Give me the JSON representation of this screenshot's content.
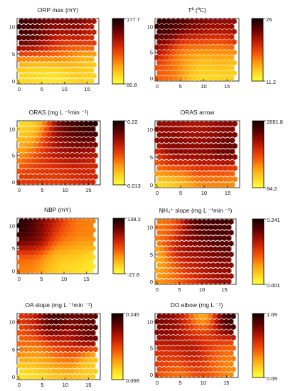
{
  "figure": {
    "colormap": [
      "#fffd3a",
      "#ffd21e",
      "#ff9c0f",
      "#f55a09",
      "#d72b05",
      "#9c0d02",
      "#560100",
      "#160000"
    ]
  },
  "chart_data": [
    {
      "type": "heatmap",
      "map": "som-hexagonal",
      "title": "ORP max (mY)",
      "x_ticks": [
        "0",
        "5",
        "10",
        "15"
      ],
      "y_ticks": [
        "10",
        "5",
        "0"
      ],
      "colorbar": {
        "max": "177.7",
        "min": "60.8"
      },
      "hotspots": [
        [
          1,
          9,
          0.92,
          3.0
        ],
        [
          4,
          10,
          0.9,
          3.2
        ],
        [
          7,
          9,
          0.7,
          2.5
        ],
        [
          13,
          11,
          0.85,
          3.0
        ],
        [
          16,
          9,
          0.55,
          2.2
        ],
        [
          9,
          6,
          0.45,
          2.5
        ],
        [
          2,
          2,
          0.12,
          3.0
        ],
        [
          8,
          1,
          0.05,
          3.0
        ],
        [
          14,
          3,
          0.2,
          3.0
        ],
        [
          16,
          1,
          0.1,
          2.0
        ]
      ]
    },
    {
      "type": "heatmap",
      "map": "som-hexagonal",
      "title": "Tª (ºC)",
      "x_ticks": [
        "0",
        "5",
        "10",
        "15"
      ],
      "y_ticks": [
        "10",
        "5",
        "0"
      ],
      "colorbar": {
        "max": "26",
        "min": "11.2"
      },
      "hotspots": [
        [
          1,
          10,
          0.95,
          3.0
        ],
        [
          4,
          11,
          0.9,
          3.0
        ],
        [
          9,
          10,
          0.8,
          3.0
        ],
        [
          15,
          10,
          0.75,
          3.0
        ],
        [
          0,
          6,
          0.7,
          2.0
        ],
        [
          10,
          2,
          0.1,
          4.0
        ],
        [
          15,
          1,
          0.15,
          3.0
        ],
        [
          3,
          2,
          0.45,
          2.5
        ],
        [
          6,
          5,
          0.3,
          2.5
        ],
        [
          13,
          5,
          0.35,
          2.5
        ]
      ]
    },
    {
      "type": "heatmap",
      "map": "som-hexagonal",
      "title": "ORAS (mg L ⁻¹min ⁻¹)",
      "x_ticks": [
        "0",
        "5",
        "10",
        "15"
      ],
      "y_ticks": [
        "10",
        "5",
        "0"
      ],
      "colorbar": {
        "max": "0.22",
        "min": "0.013"
      },
      "hotspots": [
        [
          14,
          10,
          1.0,
          3.5
        ],
        [
          11,
          8,
          0.8,
          3.0
        ],
        [
          8,
          6,
          0.65,
          3.0
        ],
        [
          15,
          4,
          0.55,
          3.0
        ],
        [
          2,
          10,
          0.1,
          3.0
        ],
        [
          0,
          6,
          0.25,
          2.5
        ],
        [
          4,
          3,
          0.5,
          3.0
        ],
        [
          2,
          0,
          0.55,
          2.5
        ],
        [
          8,
          1,
          0.5,
          2.5
        ],
        [
          16,
          1,
          0.6,
          2.5
        ]
      ]
    },
    {
      "type": "heatmap",
      "map": "som-hexagonal",
      "title": "ORAS arrow",
      "x_ticks": [
        "0",
        "5",
        "10",
        "15"
      ],
      "y_ticks": [
        "10",
        "5",
        "0"
      ],
      "colorbar": {
        "max": "2691.8",
        "min": "84.2"
      },
      "hotspots": [
        [
          3,
          10,
          0.7,
          3.0
        ],
        [
          9,
          10,
          0.65,
          3.0
        ],
        [
          15,
          10,
          0.75,
          3.0
        ],
        [
          3,
          6,
          0.85,
          3.0
        ],
        [
          10,
          5,
          0.8,
          3.0
        ],
        [
          15,
          6,
          0.9,
          2.5
        ],
        [
          1,
          0,
          0.05,
          2.0
        ],
        [
          5,
          1,
          0.15,
          2.5
        ],
        [
          11,
          1,
          0.25,
          2.5
        ],
        [
          16,
          1,
          0.3,
          2.5
        ],
        [
          0,
          4,
          0.3,
          2.0
        ]
      ]
    },
    {
      "type": "heatmap",
      "map": "som-hexagonal",
      "title": "NBP (mY)",
      "x_ticks": [
        "0",
        "5",
        "10",
        "15"
      ],
      "y_ticks": [
        "10",
        "5",
        "0"
      ],
      "colorbar": {
        "max": "138.2",
        "min": "-27.8"
      },
      "hotspots": [
        [
          1,
          10,
          1.0,
          2.8
        ],
        [
          3,
          7,
          0.85,
          2.5
        ],
        [
          6,
          10,
          0.7,
          2.5
        ],
        [
          10,
          8,
          0.45,
          2.5
        ],
        [
          15,
          9,
          0.35,
          2.5
        ],
        [
          3,
          2,
          0.35,
          3.0
        ],
        [
          9,
          1,
          0.12,
          3.0
        ],
        [
          15,
          1,
          0.05,
          3.0
        ],
        [
          12,
          5,
          0.25,
          3.0
        ]
      ]
    },
    {
      "type": "heatmap",
      "map": "som-hexagonal",
      "title": "NH₄⁺ slope (mg L ⁻¹min ⁻¹)",
      "x_ticks": [
        "0",
        "5",
        "10",
        "15"
      ],
      "y_ticks": [
        "10",
        "5",
        "0"
      ],
      "colorbar": {
        "max": "0.241",
        "min": "0.001"
      },
      "hotspots": [
        [
          12,
          9,
          0.92,
          4.0
        ],
        [
          16,
          7,
          0.85,
          3.0
        ],
        [
          7,
          6,
          0.7,
          3.0
        ],
        [
          12,
          3,
          0.72,
          3.0
        ],
        [
          2,
          10,
          0.35,
          2.5
        ],
        [
          0,
          4,
          0.2,
          2.0
        ],
        [
          3,
          1,
          0.3,
          2.5
        ],
        [
          8,
          1,
          0.5,
          3.0
        ],
        [
          16,
          1,
          0.7,
          2.5
        ]
      ]
    },
    {
      "type": "heatmap",
      "map": "som-hexagonal",
      "title": "OA slope (mg L ⁻¹min ⁻¹)",
      "x_ticks": [
        "0",
        "5",
        "10",
        "15"
      ],
      "y_ticks": [
        "10",
        "5",
        "0"
      ],
      "colorbar": {
        "max": "0.245",
        "min": "0.068"
      },
      "hotspots": [
        [
          7,
          10,
          1.0,
          2.2
        ],
        [
          14,
          9,
          0.85,
          2.5
        ],
        [
          3,
          10,
          0.55,
          2.5
        ],
        [
          10,
          7,
          0.65,
          2.5
        ],
        [
          0,
          6,
          0.4,
          2.0
        ],
        [
          4,
          4,
          0.35,
          2.5
        ],
        [
          9,
          3,
          0.4,
          2.5
        ],
        [
          3,
          1,
          0.05,
          2.5
        ],
        [
          8,
          0,
          0.1,
          2.5
        ],
        [
          15,
          1,
          0.15,
          2.5
        ]
      ]
    },
    {
      "type": "heatmap",
      "map": "som-hexagonal",
      "title": "DO elbow (mg L ⁻¹)",
      "x_ticks": [
        "0",
        "5",
        "10",
        "15"
      ],
      "y_ticks": [
        "10",
        "5",
        "0"
      ],
      "colorbar": {
        "max": "1.09",
        "min": "0.09"
      },
      "hotspots": [
        [
          10,
          11,
          0.05,
          2.0
        ],
        [
          15,
          10,
          0.95,
          2.5
        ],
        [
          3,
          9,
          0.8,
          2.5
        ],
        [
          7,
          9,
          0.55,
          2.5
        ],
        [
          12,
          6,
          0.5,
          2.5
        ],
        [
          2,
          3,
          0.55,
          2.5
        ],
        [
          8,
          4,
          0.75,
          2.5
        ],
        [
          14,
          2,
          0.25,
          2.5
        ],
        [
          16,
          4,
          0.4,
          2.0
        ],
        [
          5,
          0,
          0.3,
          2.5
        ],
        [
          11,
          1,
          0.5,
          2.5
        ]
      ]
    }
  ]
}
